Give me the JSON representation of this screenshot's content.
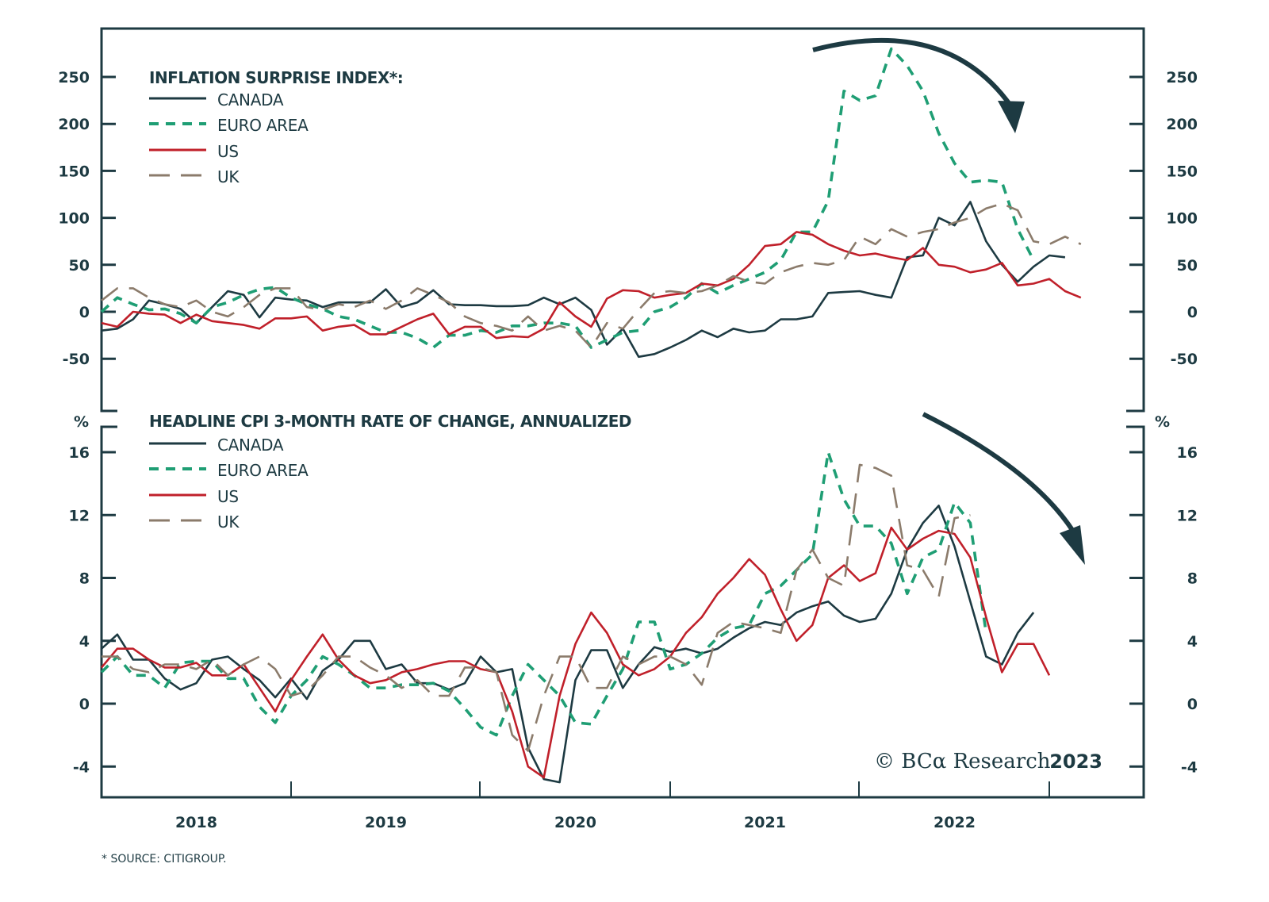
{
  "chart_data": [
    {
      "type": "line",
      "title": "INFLATION SURPRISE INDEX*:",
      "ylabel": "",
      "ylim": [
        -100,
        300
      ],
      "yticks": [
        -50,
        0,
        50,
        100,
        150,
        200,
        250
      ],
      "ytick_labels": [
        "-50",
        "0",
        "50",
        "100",
        "150",
        "200",
        "250"
      ],
      "x_start": "2018-01",
      "x_frequency": "monthly",
      "series": [
        {
          "name": "CANADA",
          "style": "solid",
          "color": "#1d3a42",
          "values": [
            -20,
            -18,
            -8,
            12,
            8,
            3,
            -12,
            5,
            22,
            18,
            -6,
            15,
            13,
            12,
            5,
            10,
            10,
            10,
            24,
            5,
            10,
            23,
            8,
            7,
            7,
            6,
            6,
            7,
            15,
            8,
            15,
            2,
            -35,
            -18,
            -48,
            -45,
            -38,
            -30,
            -20,
            -27,
            -18,
            -22,
            -20,
            -8,
            -8,
            -5,
            20,
            21,
            22,
            18,
            15,
            58,
            60,
            100,
            92,
            117,
            75,
            50,
            32,
            48,
            60,
            58
          ]
        },
        {
          "name": "EURO AREA",
          "style": "dashed",
          "color": "#1f9e74",
          "values": [
            0,
            15,
            8,
            2,
            3,
            -2,
            -12,
            5,
            10,
            18,
            24,
            26,
            15,
            8,
            3,
            -5,
            -8,
            -15,
            -22,
            -22,
            -28,
            -38,
            -25,
            -25,
            -20,
            -22,
            -15,
            -15,
            -12,
            -12,
            -15,
            -38,
            -30,
            -22,
            -20,
            0,
            5,
            15,
            30,
            20,
            28,
            35,
            42,
            55,
            85,
            85,
            118,
            235,
            225,
            230,
            280,
            262,
            235,
            190,
            158,
            138,
            140,
            138,
            88,
            55
          ]
        },
        {
          "name": "US",
          "style": "solid",
          "color": "#c0202a",
          "values": [
            -12,
            -16,
            0,
            -2,
            -3,
            -12,
            -3,
            -10,
            -12,
            -14,
            -18,
            -7,
            -7,
            -5,
            -20,
            -16,
            -14,
            -24,
            -24,
            -16,
            -8,
            -2,
            -24,
            -16,
            -16,
            -28,
            -26,
            -27,
            -18,
            10,
            -5,
            -16,
            14,
            23,
            22,
            15,
            18,
            20,
            30,
            28,
            35,
            50,
            70,
            72,
            85,
            82,
            72,
            65,
            60,
            62,
            58,
            55,
            68,
            50,
            48,
            42,
            45,
            52,
            28,
            30,
            35,
            22,
            15
          ]
        },
        {
          "name": "UK",
          "style": "longdash",
          "color": "#8b7b6b",
          "values": [
            12,
            25,
            25,
            15,
            8,
            5,
            12,
            0,
            -5,
            5,
            18,
            25,
            25,
            5,
            2,
            8,
            5,
            12,
            3,
            12,
            25,
            18,
            10,
            -5,
            -12,
            -15,
            -20,
            -5,
            -20,
            -15,
            -20,
            -38,
            -12,
            -18,
            2,
            20,
            22,
            20,
            22,
            28,
            38,
            32,
            30,
            42,
            48,
            52,
            50,
            55,
            80,
            72,
            88,
            80,
            85,
            88,
            95,
            100,
            110,
            115,
            108,
            75,
            72,
            80,
            72
          ]
        }
      ]
    },
    {
      "type": "line",
      "title": "HEADLINE CPI 3-MONTH RATE OF CHANGE, ANNUALIZED",
      "ylabel": "%",
      "ylim": [
        -6,
        18
      ],
      "yticks": [
        -4,
        0,
        4,
        8,
        12,
        16
      ],
      "ytick_labels": [
        "-4",
        "0",
        "4",
        "8",
        "12",
        "16"
      ],
      "x_start": "2018-01",
      "x_frequency": "monthly",
      "series": [
        {
          "name": "CANADA",
          "style": "solid",
          "color": "#1d3a42",
          "values": [
            3.5,
            4.4,
            2.8,
            2.8,
            1.6,
            0.9,
            1.3,
            2.8,
            3.0,
            2.2,
            1.5,
            0.4,
            1.6,
            0.3,
            2.1,
            2.8,
            4.0,
            4.0,
            2.2,
            2.5,
            1.3,
            1.3,
            0.9,
            1.3,
            3.0,
            2.0,
            2.2,
            -2.8,
            -4.8,
            -5.0,
            1.5,
            3.4,
            3.4,
            1.0,
            2.5,
            3.6,
            3.3,
            3.5,
            3.2,
            3.5,
            4.2,
            4.8,
            5.2,
            5.0,
            5.8,
            6.2,
            6.5,
            5.6,
            5.2,
            5.4,
            7.0,
            9.8,
            11.5,
            12.6,
            10.0,
            6.5,
            3.0,
            2.5,
            4.5,
            5.8
          ]
        },
        {
          "name": "EURO AREA",
          "style": "dashed",
          "color": "#1f9e74",
          "values": [
            2.0,
            3.0,
            1.8,
            1.8,
            1.0,
            2.6,
            2.7,
            2.7,
            1.6,
            1.6,
            -0.2,
            -1.2,
            0.5,
            1.5,
            3.0,
            2.5,
            1.8,
            1.0,
            1.0,
            1.2,
            1.2,
            1.3,
            0.8,
            -0.3,
            -1.5,
            -2.0,
            0.5,
            2.5,
            1.5,
            0.5,
            -1.2,
            -1.3,
            0.5,
            2.2,
            5.2,
            5.2,
            2.2,
            2.5,
            3.2,
            4.2,
            4.8,
            5.0,
            7.0,
            7.5,
            8.5,
            9.5,
            16.0,
            13.0,
            11.3,
            11.3,
            10.2,
            7.0,
            9.3,
            9.8,
            12.8,
            11.5,
            4.5
          ]
        },
        {
          "name": "US",
          "style": "solid",
          "color": "#c0202a",
          "values": [
            2.3,
            3.5,
            3.5,
            2.8,
            2.3,
            2.3,
            2.6,
            1.8,
            1.8,
            2.5,
            1.0,
            -0.5,
            1.5,
            3.0,
            4.4,
            2.8,
            1.8,
            1.3,
            1.5,
            2.0,
            2.2,
            2.5,
            2.7,
            2.7,
            2.2,
            2.0,
            -0.5,
            -4.0,
            -4.7,
            0.5,
            3.8,
            5.8,
            4.5,
            2.5,
            1.8,
            2.2,
            3.0,
            4.5,
            5.5,
            7.0,
            8.0,
            9.2,
            8.2,
            6.0,
            4.0,
            5.0,
            8.0,
            8.8,
            7.8,
            8.3,
            11.2,
            9.8,
            10.5,
            11.0,
            10.8,
            9.3,
            5.5,
            2.0,
            3.8,
            3.8,
            1.8
          ]
        },
        {
          "name": "UK",
          "style": "longdash",
          "color": "#8b7b6b",
          "values": [
            3.0,
            3.0,
            2.2,
            2.0,
            2.5,
            2.5,
            2.2,
            2.8,
            1.8,
            2.5,
            3.0,
            2.2,
            0.5,
            0.8,
            1.8,
            3.0,
            3.0,
            2.3,
            1.8,
            1.0,
            1.5,
            0.5,
            0.5,
            2.3,
            2.3,
            2.0,
            -2.0,
            -3.0,
            0.5,
            3.0,
            3.0,
            1.0,
            1.0,
            3.0,
            2.5,
            3.0,
            3.0,
            2.5,
            1.2,
            4.5,
            5.2,
            5.0,
            4.8,
            4.5,
            8.5,
            9.8,
            8.0,
            7.5,
            15.2,
            15.0,
            14.5,
            8.8,
            8.5,
            6.8,
            11.8,
            12.0
          ]
        }
      ]
    }
  ],
  "xaxis": {
    "year_labels": [
      "2018",
      "2019",
      "2020",
      "2021",
      "2022"
    ]
  },
  "legend": {
    "top": {
      "title": "INFLATION SURPRISE INDEX*:",
      "items": [
        "CANADA",
        "EURO AREA",
        "US",
        "UK"
      ]
    },
    "bottom": {
      "title": "HEADLINE CPI 3-MONTH RATE OF CHANGE, ANNUALIZED",
      "items": [
        "CANADA",
        "EURO AREA",
        "US",
        "UK"
      ]
    }
  },
  "bottom_unit_label": "%",
  "footnote": "* SOURCE: CITIGROUP.",
  "copyright": {
    "text": "© BCα Research",
    "year": "2023"
  },
  "colors": {
    "frame": "#1d3a42",
    "canada": "#1d3a42",
    "euro_area": "#1f9e74",
    "us": "#c0202a",
    "uk": "#8b7b6b"
  }
}
